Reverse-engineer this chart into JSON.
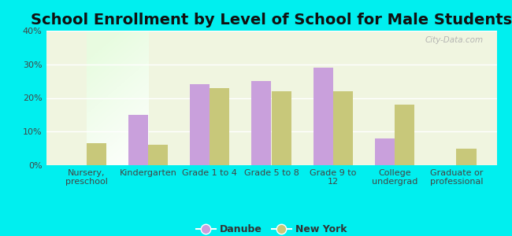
{
  "title": "School Enrollment by Level of School for Male Students",
  "categories": [
    "Nursery,\npreschool",
    "Kindergarten",
    "Grade 1 to 4",
    "Grade 5 to 8",
    "Grade 9 to\n12",
    "College\nundergrad",
    "Graduate or\nprofessional"
  ],
  "danube": [
    0,
    15,
    24,
    25,
    29,
    8,
    0
  ],
  "newyork": [
    6.5,
    6,
    23,
    22,
    22,
    18,
    5
  ],
  "danube_color": "#c9a0dc",
  "newyork_color": "#c8c87a",
  "background_color": "#00efef",
  "ylim": [
    0,
    40
  ],
  "yticks": [
    0,
    10,
    20,
    30,
    40
  ],
  "title_fontsize": 14,
  "tick_fontsize": 8,
  "legend_fontsize": 9,
  "bar_width": 0.32,
  "watermark": "City-Data.com"
}
